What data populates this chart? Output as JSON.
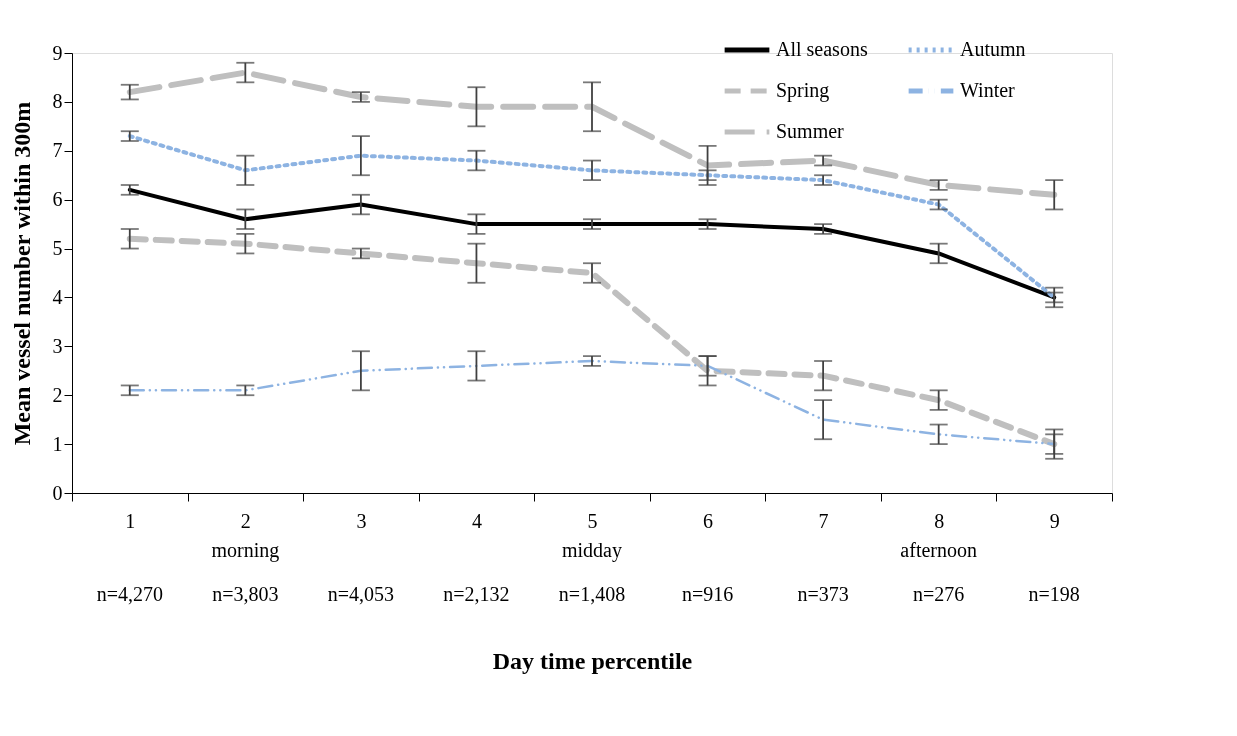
{
  "chart_data": {
    "type": "line",
    "xlabel": "Day time percentile",
    "ylabel": "Mean vessel number within 300m",
    "categories": [
      "1",
      "2",
      "3",
      "4",
      "5",
      "6",
      "7",
      "8",
      "9"
    ],
    "ylim": [
      0,
      9
    ],
    "yticks": [
      0,
      1,
      2,
      3,
      4,
      5,
      6,
      7,
      8,
      9
    ],
    "grid": false,
    "legend": "top right",
    "marker": "none",
    "series": [
      {
        "name": "All seasons",
        "color": "#000000",
        "line_style": "solid",
        "values": [
          6.2,
          5.6,
          5.9,
          5.5,
          5.5,
          5.5,
          5.4,
          4.9,
          4.0
        ],
        "errors": [
          0.1,
          0.2,
          0.2,
          0.2,
          0.1,
          0.1,
          0.1,
          0.2,
          0.2
        ]
      },
      {
        "name": "Spring",
        "color": "#bfbfbf",
        "line_style": "dashed",
        "values": [
          5.2,
          5.1,
          4.9,
          4.7,
          4.5,
          2.5,
          2.4,
          1.9,
          1.0
        ],
        "errors": [
          0.2,
          0.2,
          0.1,
          0.4,
          0.2,
          0.3,
          0.3,
          0.2,
          0.3
        ]
      },
      {
        "name": "Summer",
        "color": "#bfbfbf",
        "line_style": "long_dashed",
        "values": [
          8.2,
          8.6,
          8.1,
          7.9,
          7.9,
          6.7,
          6.8,
          6.3,
          6.1
        ],
        "errors": [
          0.15,
          0.2,
          0.1,
          0.4,
          0.5,
          0.4,
          0.1,
          0.1,
          0.3
        ]
      },
      {
        "name": "Autumn",
        "color": "#8db3e2",
        "line_style": "dotted",
        "values": [
          7.3,
          6.6,
          6.9,
          6.8,
          6.6,
          6.5,
          6.4,
          5.9,
          4.0
        ],
        "errors": [
          0.1,
          0.3,
          0.4,
          0.2,
          0.2,
          0.1,
          0.1,
          0.1,
          0.1
        ]
      },
      {
        "name": "Winter",
        "color": "#8db3e2",
        "line_style": "dashdot",
        "values": [
          2.1,
          2.1,
          2.5,
          2.6,
          2.7,
          2.6,
          1.5,
          1.2,
          1.0
        ],
        "errors": [
          0.1,
          0.1,
          0.4,
          0.3,
          0.1,
          0.2,
          0.4,
          0.2,
          0.2
        ]
      }
    ],
    "annotations": [
      "morning",
      "midday",
      "afternoon",
      "n=4,270",
      "n=3,803",
      "n=4,053",
      "n=2,132",
      "n=1,408",
      "n=916",
      "n=373",
      "n=276",
      "n=198"
    ]
  }
}
